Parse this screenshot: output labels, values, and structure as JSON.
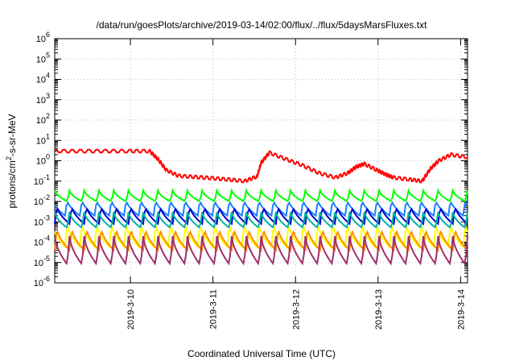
{
  "chart_data": {
    "type": "line",
    "title": "/data/run/goesPlots/archive/2019-03-14/02:00/flux/../flux/5daysMarsFluxes.txt",
    "xlabel": "Coordinated Universal Time (UTC)",
    "ylabel": "protons/cm²-s-sr-MeV",
    "y_scale": "log",
    "ylim_exp": [
      -6,
      6
    ],
    "y_tick_exponents": [
      -6,
      -5,
      -4,
      -3,
      -2,
      -1,
      0,
      1,
      2,
      3,
      4,
      5,
      6
    ],
    "x_range_days": [
      "2019-03-09 02:00",
      "2019-03-14 02:00"
    ],
    "x_ticks": [
      "2019-3-10",
      "2019-3-11",
      "2019-3-12",
      "2019-3-13",
      "2019-3-14"
    ],
    "grid": true,
    "series": [
      {
        "color": "#ff0000",
        "style": "smooth",
        "x_days": [
          0.0,
          0.3,
          0.6,
          0.9,
          1.15,
          1.25,
          1.35,
          1.5,
          1.7,
          1.9,
          2.1,
          2.3,
          2.45,
          2.5,
          2.6,
          2.8,
          3.0,
          3.2,
          3.4,
          3.55,
          3.65,
          3.75,
          3.9,
          4.0,
          4.1,
          4.3,
          4.45,
          4.55,
          4.65,
          4.8,
          5.0
        ],
        "values": [
          3.0,
          3.0,
          3.0,
          3.0,
          3.0,
          1.2,
          0.35,
          0.18,
          0.16,
          0.14,
          0.12,
          0.1,
          0.17,
          0.8,
          2.5,
          1.2,
          0.6,
          0.25,
          0.15,
          0.25,
          0.5,
          0.7,
          0.35,
          0.22,
          0.15,
          0.12,
          0.1,
          0.4,
          1.0,
          2.0,
          1.5
        ]
      },
      {
        "color": "#00ff00",
        "style": "sawtooth",
        "high": 0.035,
        "low": 0.01
      },
      {
        "color": "#1a7fff",
        "style": "sawtooth",
        "high": 0.012,
        "low": 0.002
      },
      {
        "color": "#0000c8",
        "style": "sawtooth",
        "high": 0.006,
        "low": 0.0008
      },
      {
        "color": "#00b4a0",
        "style": "sawtooth",
        "high": 0.003,
        "low": 0.0005
      },
      {
        "color": "#ffff00",
        "style": "sawtooth",
        "high": 0.0008,
        "low": 6e-05
      },
      {
        "color": "#ff8c00",
        "style": "sawtooth",
        "high": 0.0005,
        "low": 4e-05
      },
      {
        "color": "#a0306a",
        "style": "sawtooth",
        "high": 0.0002,
        "low": 8e-06
      }
    ]
  }
}
